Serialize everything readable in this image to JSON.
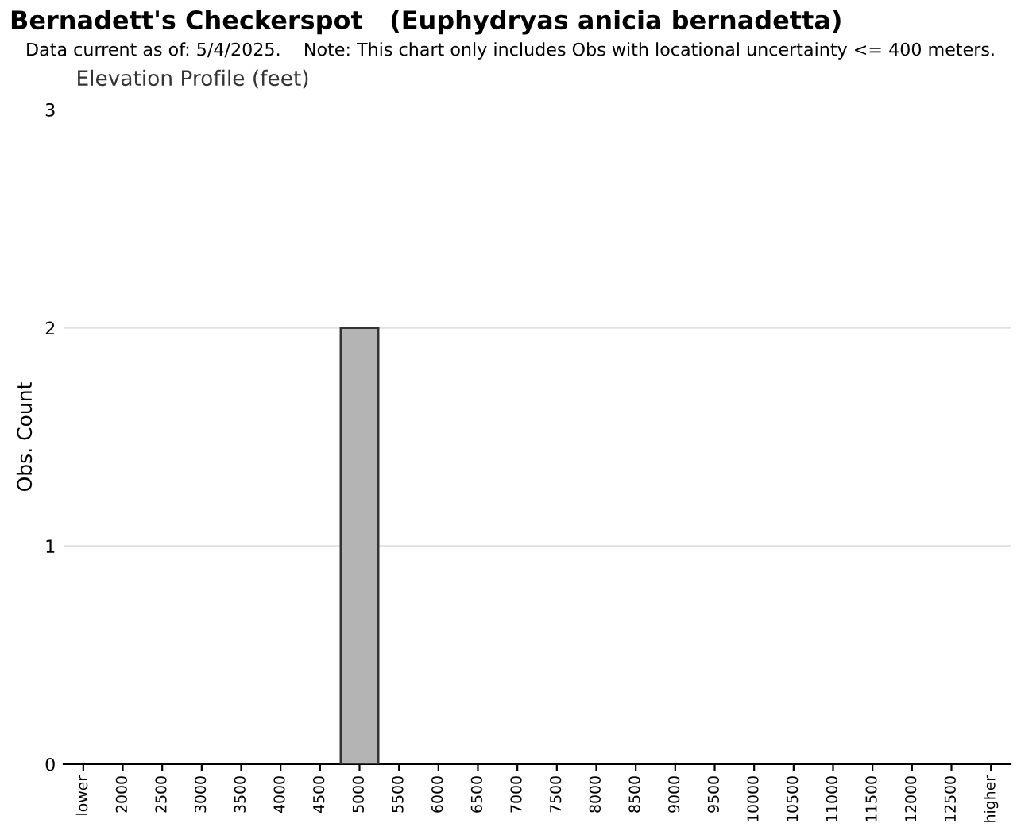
{
  "chart_data": {
    "type": "bar",
    "title": "Bernadett's Checkerspot   (Euphydryas anicia bernadetta)",
    "subtitle": "Data current as of: 5/4/2025.    Note: This chart only includes Obs with locational uncertainty <= 400 meters.",
    "annotations": [
      "Elevation Profile (feet)"
    ],
    "ylabel": "Obs. Count",
    "categories": [
      "lower",
      "2000",
      "2500",
      "3000",
      "3500",
      "4000",
      "4500",
      "5000",
      "5500",
      "6000",
      "6500",
      "7000",
      "7500",
      "8000",
      "8500",
      "9000",
      "9500",
      "10000",
      "10500",
      "11000",
      "11500",
      "12000",
      "12500",
      "higher"
    ],
    "values": [
      0,
      0,
      0,
      0,
      0,
      0,
      0,
      2,
      0,
      0,
      0,
      0,
      0,
      0,
      0,
      0,
      0,
      0,
      0,
      0,
      0,
      0,
      0,
      0
    ],
    "color": "#b4b4b4",
    "ylim": [
      0,
      3
    ],
    "yticks": [
      0,
      1,
      2,
      3
    ],
    "grid": "y"
  }
}
